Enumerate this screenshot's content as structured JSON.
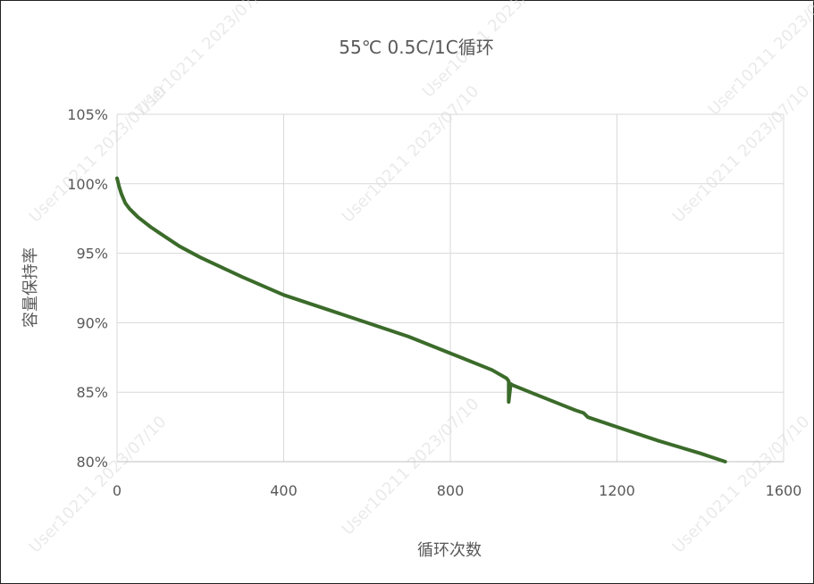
{
  "chart_data": {
    "type": "line",
    "title": "55℃ 0.5C/1C循环",
    "xlabel": "循环次数",
    "ylabel": "容量保持率",
    "xlim": [
      0,
      1600
    ],
    "ylim": [
      80,
      105
    ],
    "x_ticks": [
      "0",
      "400",
      "800",
      "1200",
      "1600"
    ],
    "y_ticks": [
      "80%",
      "85%",
      "90%",
      "95%",
      "100%",
      "105%"
    ],
    "grid": true,
    "legend": "none",
    "series": [
      {
        "color": "#3b6b2a",
        "x": [
          0,
          5,
          10,
          20,
          30,
          50,
          80,
          100,
          150,
          200,
          250,
          300,
          400,
          500,
          600,
          700,
          800,
          900,
          935,
          940,
          940,
          945,
          950,
          1000,
          1100,
          1120,
          1130,
          1200,
          1300,
          1400,
          1460
        ],
        "y": [
          100.4,
          99.8,
          99.3,
          98.6,
          98.2,
          97.6,
          96.9,
          96.5,
          95.5,
          94.7,
          94.0,
          93.3,
          92.0,
          91.0,
          90.0,
          89.0,
          87.8,
          86.6,
          86.0,
          85.8,
          84.3,
          85.6,
          85.5,
          84.9,
          83.7,
          83.5,
          83.2,
          82.5,
          81.5,
          80.6,
          80.0
        ]
      }
    ],
    "watermark": "User10211 2023/07/10"
  }
}
